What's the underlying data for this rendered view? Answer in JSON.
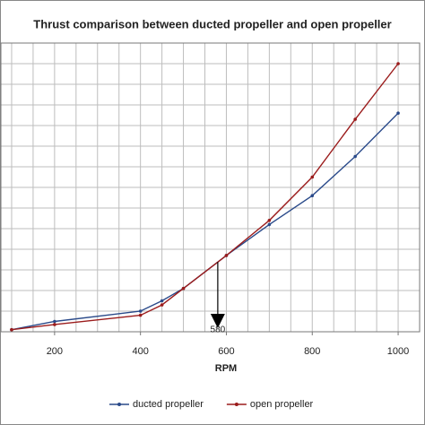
{
  "chart_data": {
    "type": "line",
    "title": "Thrust comparison between ducted propeller and open propeller",
    "x_label": "RPM",
    "x": [
      100,
      200,
      400,
      450,
      500,
      600,
      700,
      800,
      900,
      1000
    ],
    "series": [
      {
        "name": "ducted propeller",
        "color": "#2a4a8a",
        "values": [
          0.1,
          0.5,
          1.0,
          1.5,
          2.1,
          3.7,
          5.2,
          6.6,
          8.5,
          10.6
        ]
      },
      {
        "name": "open propeller",
        "color": "#9b1c1c",
        "values": [
          0.1,
          0.35,
          0.8,
          1.3,
          2.1,
          3.7,
          5.4,
          7.5,
          10.3,
          13.0
        ]
      }
    ],
    "xlim": [
      75,
      1050
    ],
    "xticks": [
      200,
      400,
      600,
      800,
      1000
    ],
    "xgrid": [
      100,
      150,
      200,
      250,
      300,
      350,
      400,
      450,
      500,
      550,
      600,
      650,
      700,
      750,
      800,
      850,
      900,
      950,
      1000
    ],
    "ylim": [
      0,
      14
    ],
    "ygrid": [
      0,
      1,
      2,
      3,
      4,
      5,
      6,
      7,
      8,
      9,
      10,
      11,
      12,
      13,
      14
    ],
    "annotation": {
      "x": 580
    },
    "legend": "bottom"
  }
}
